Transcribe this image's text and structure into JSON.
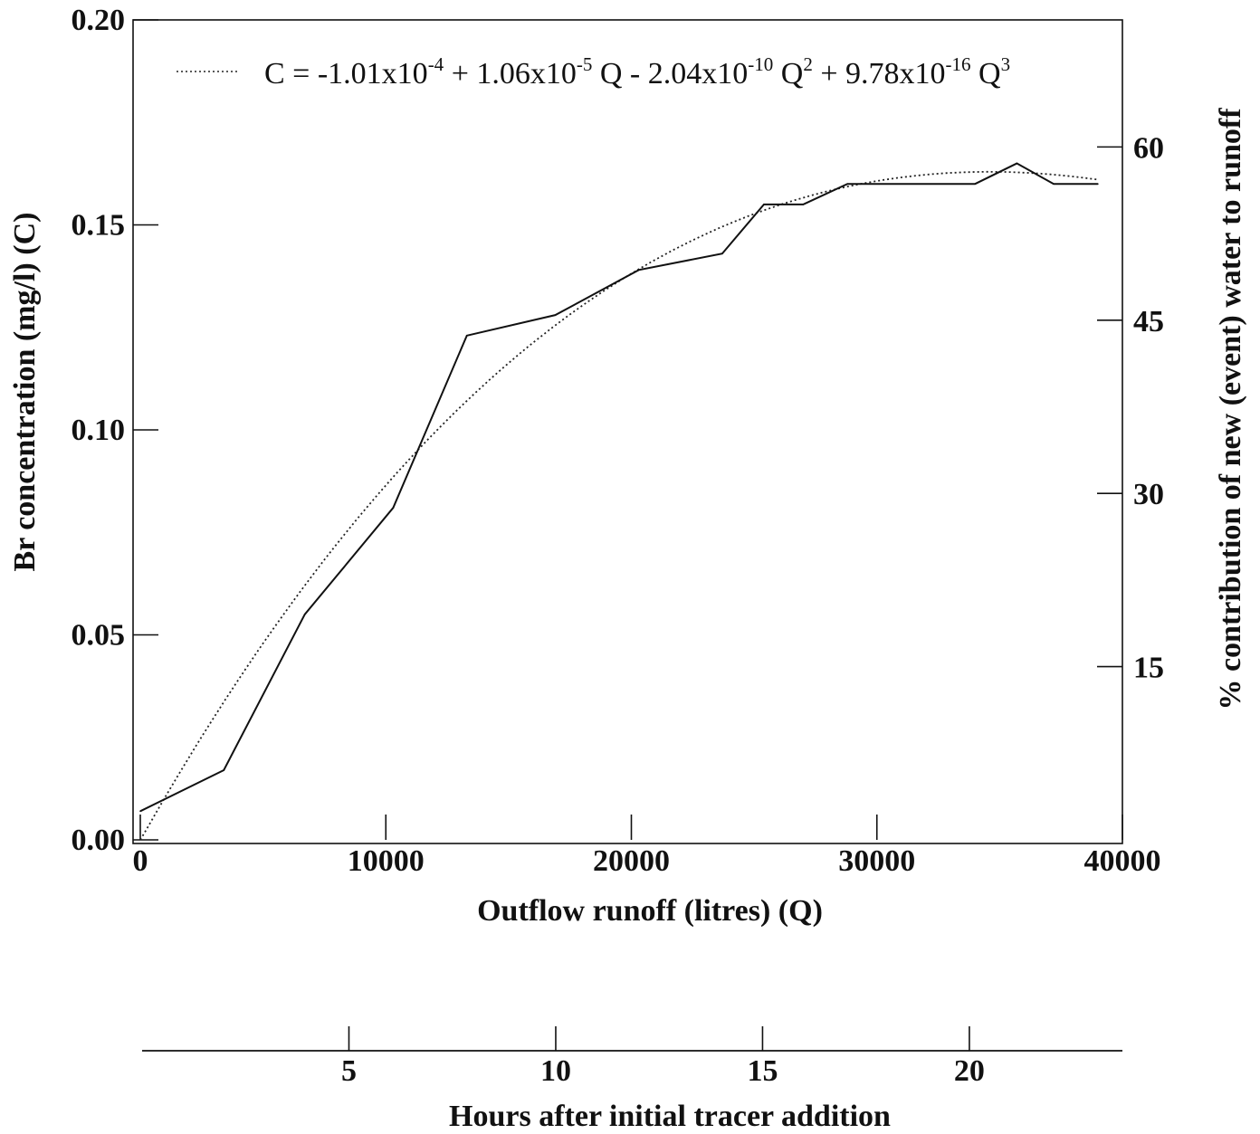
{
  "chart_data": {
    "type": "line",
    "xlabel": "Outflow runoff (litres) (Q)",
    "ylabel": "Br concentration (mg/l) (C)",
    "y2label": "% contribution of new (event) water to runoff",
    "x2label": "Hours after initial tracer addition",
    "xlim": [
      0,
      40000
    ],
    "ylim": [
      0,
      0.2
    ],
    "y2lim": [
      0,
      71
    ],
    "x2lim": [
      0,
      23.7
    ],
    "xticks": [
      "0",
      "10000",
      "20000",
      "30000",
      "40000"
    ],
    "yticks": [
      "0.00",
      "0.05",
      "0.10",
      "0.15",
      "0.20"
    ],
    "y2ticks": [
      "15",
      "30",
      "45",
      "60"
    ],
    "x2ticks": [
      "5",
      "10",
      "15",
      "20"
    ],
    "grid": false,
    "legend_position": "top",
    "series": [
      {
        "style": "solid",
        "x": [
          0,
          3400,
          6700,
          10300,
          13300,
          16900,
          20300,
          23700,
          25400,
          27000,
          28800,
          34000,
          35700,
          37200,
          39000
        ],
        "y": [
          0.007,
          0.017,
          0.055,
          0.081,
          0.123,
          0.128,
          0.139,
          0.143,
          0.155,
          0.155,
          0.16,
          0.16,
          0.165,
          0.16,
          0.16
        ]
      },
      {
        "style": "dotted",
        "fit": true,
        "coefficients": [
          -0.000101,
          1.06e-05,
          -2.04e-10,
          9.78e-16
        ]
      }
    ],
    "legend": {
      "c_eq": "C = -1.01x10",
      "exp1": "-4",
      "t2": " + 1.06x10",
      "exp2": "-5",
      "t3": " Q - 2.04x10",
      "exp3": "-10",
      "t4": " Q",
      "exp4": "2",
      "t5": " + 9.78x10",
      "exp5": "-16",
      "t6": " Q",
      "exp6": "3"
    }
  }
}
